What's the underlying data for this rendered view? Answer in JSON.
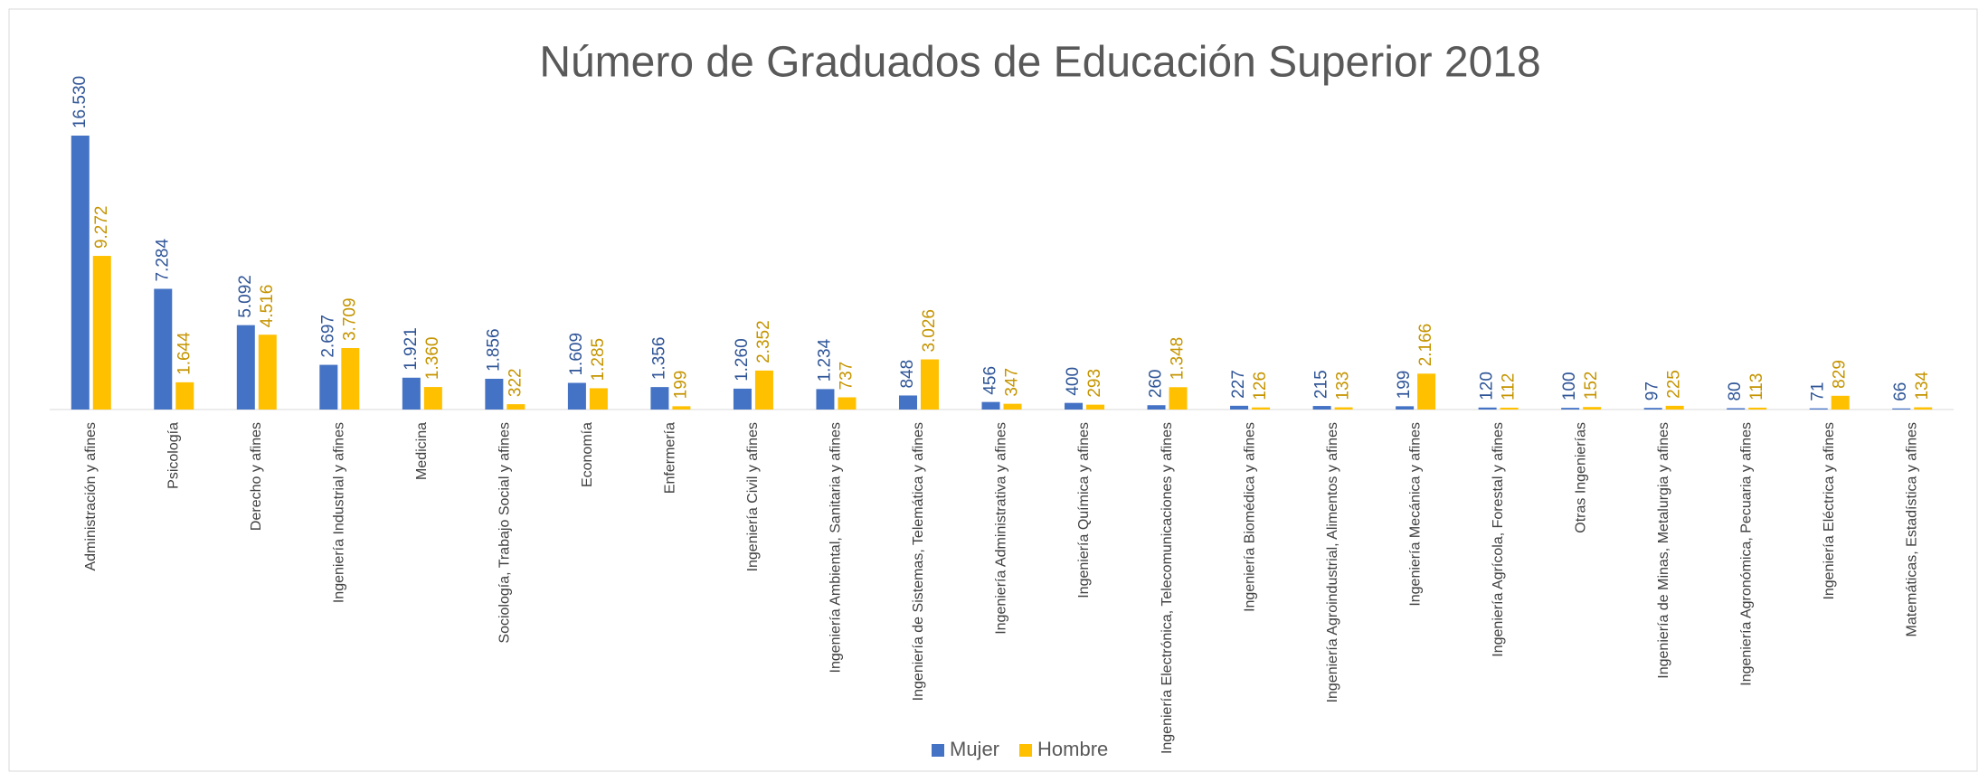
{
  "chart_data": {
    "type": "bar",
    "title": "Número de Graduados de Educación Superior 2018",
    "categories": [
      "Administración y afines",
      "Psicología",
      "Derecho y afines",
      "Ingeniería Industrial y afines",
      "Medicina",
      "Sociología, Trabajo Social y afines",
      "Economía",
      "Enfermería",
      "Ingeniería Civil y afines",
      "Ingeniería Ambiental, Sanitaria y afines",
      "Ingeniería de Sistemas, Telemática y afines",
      "Ingeniería Administrativa y afines",
      "Ingeniería Química y afines",
      "Ingeniería Electrónica, Telecomunicaciones y afines",
      "Ingeniería Biomédica y afines",
      "Ingeniería Agroindustrial, Alimentos y afines",
      "Ingeniería Mecánica y afines",
      "Ingeniería Agrícola, Forestal y afines",
      "Otras Ingenierías",
      "Ingeniería de Minas, Metalurgia y afines",
      "Ingeniería Agronómica, Pecuaria y afines",
      "Ingeniería Eléctrica y afines",
      "Matemáticas, Estadística y afines"
    ],
    "series": [
      {
        "name": "Mujer",
        "color": "#4472c4",
        "values": [
          16530,
          7284,
          5092,
          2697,
          1921,
          1856,
          1609,
          1356,
          1260,
          1234,
          848,
          456,
          400,
          260,
          227,
          215,
          199,
          120,
          100,
          97,
          80,
          71,
          66
        ],
        "value_labels": [
          "16.530",
          "7.284",
          "5.092",
          "2.697",
          "1.921",
          "1.856",
          "1.609",
          "1.356",
          "1.260",
          "1.234",
          "848",
          "456",
          "400",
          "260",
          "227",
          "215",
          "199",
          "120",
          "100",
          "97",
          "80",
          "71",
          "66"
        ]
      },
      {
        "name": "Hombre",
        "color": "#ffc000",
        "values": [
          9272,
          1644,
          4516,
          3709,
          1360,
          322,
          1285,
          199,
          2352,
          737,
          3026,
          347,
          293,
          1348,
          126,
          133,
          2166,
          112,
          152,
          225,
          113,
          829,
          134
        ],
        "value_labels": [
          "9.272",
          "1.644",
          "4.516",
          "3.709",
          "1.360",
          "322",
          "1.285",
          "199",
          "2.352",
          "737",
          "3.026",
          "347",
          "293",
          "1.348",
          "126",
          "133",
          "2.166",
          "112",
          "152",
          "225",
          "113",
          "829",
          "134"
        ]
      }
    ],
    "legend": "bottom"
  }
}
